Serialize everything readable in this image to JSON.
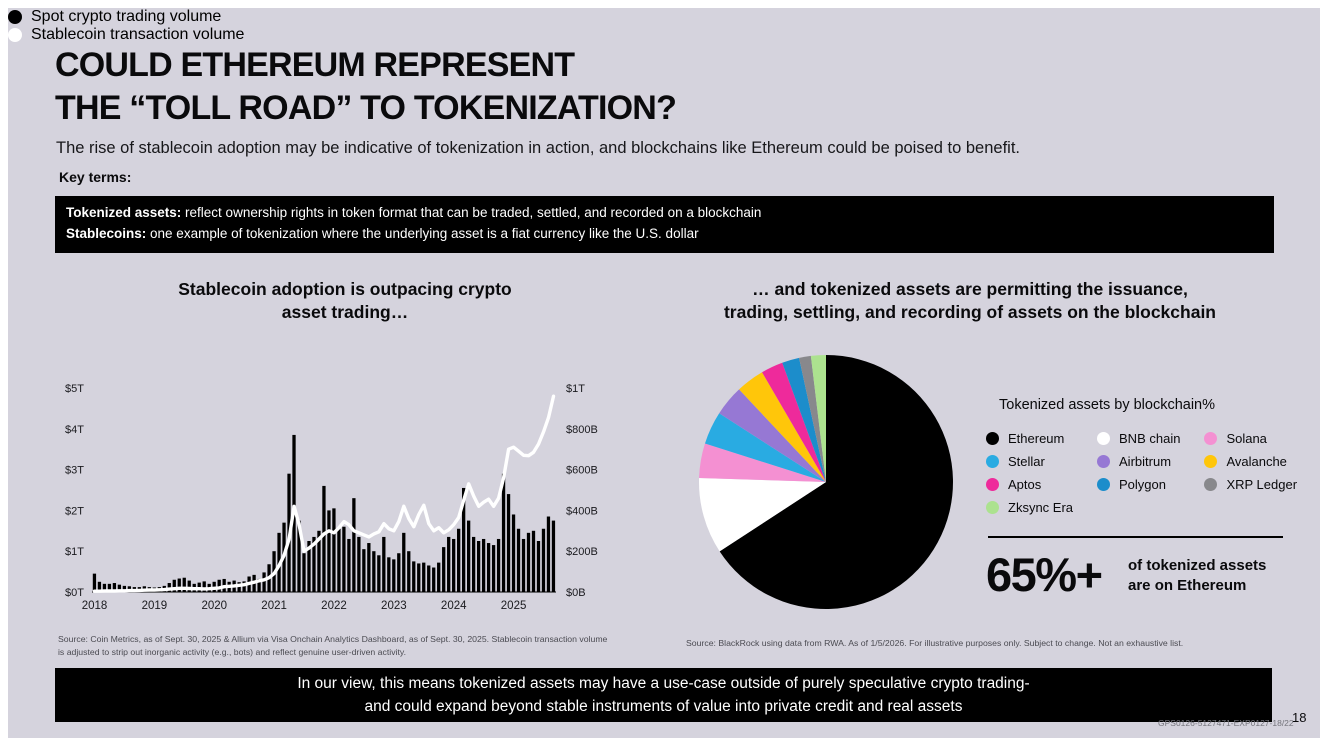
{
  "slide": {
    "title_line1": "COULD ETHEREUM REPRESENT",
    "title_line2": "THE “TOLL ROAD” TO TOKENIZATION?",
    "subtitle": "The rise of stablecoin adoption may be indicative of tokenization in action, and blockchains like Ethereum could be poised to benefit.",
    "key_terms_label": "Key terms:",
    "key_terms": [
      {
        "term": "Tokenized assets:",
        "definition": " reflect ownership rights in token format that can be traded, settled, and recorded on a blockchain"
      },
      {
        "term": "Stablecoins:",
        "definition": " one example of tokenization where the underlying asset is a fiat currency like the U.S. dollar"
      }
    ],
    "takeaway_line1": "In our view, this means tokenized assets may have a use-case outside of purely speculative crypto trading-",
    "takeaway_line2": "and could expand beyond stable instruments of value into private credit and real assets",
    "compliance_code": "GPS0126-5127471-EXP0127-18/22",
    "page_number": "18"
  },
  "left_panel": {
    "title_line1": "Stablecoin adoption is outpacing crypto",
    "title_line2": "asset trading…",
    "legend": [
      {
        "label": "Spot crypto trading volume",
        "color": "#000000",
        "border": "none"
      },
      {
        "label": "Stablecoin transaction volume",
        "color": "#ffffff",
        "border": "none"
      }
    ],
    "source_line1": "Source: Coin Metrics, as of Sept. 30, 2025 & Allium via Visa Onchain Analytics Dashboard, as of Sept. 30, 2025. Stablecoin transaction volume",
    "source_line2": "is adjusted to strip out inorganic activity (e.g., bots) and reflect genuine user-driven activity."
  },
  "right_panel": {
    "title_line1": "… and  tokenized assets are permitting the issuance,",
    "title_line2": "trading, settling, and recording of assets on the blockchain",
    "legend_title": "Tokenized assets by blockchain%",
    "legend_columns": [
      [
        {
          "label": "Ethereum",
          "color": "#000000"
        },
        {
          "label": "Stellar",
          "color": "#29abe2"
        },
        {
          "label": "Aptos",
          "color": "#ee2a9b"
        },
        {
          "label": "Zksync Era",
          "color": "#ace28f"
        }
      ],
      [
        {
          "label": "BNB chain",
          "color": "#ffffff"
        },
        {
          "label": "Airbitrum",
          "color": "#9678d4"
        },
        {
          "label": "Polygon",
          "color": "#1c8dcb"
        }
      ],
      [
        {
          "label": "Solana",
          "color": "#f490d2"
        },
        {
          "label": "Avalanche",
          "color": "#ffc60a"
        },
        {
          "label": "XRP Ledger",
          "color": "#88888c"
        }
      ]
    ],
    "stat_value": "65%+",
    "stat_label_line1": "of tokenized assets",
    "stat_label_line2": "are on Ethereum",
    "source": "Source: BlackRock using data from RWA. As of 1/5/2026. For illustrative purposes only. Subject to change. Not an exhaustive list."
  },
  "chart_data": [
    {
      "type": "bar",
      "subtype": "bar+line dual-axis combo, monthly Jan 2018 - Sep 2025",
      "title": "Stablecoin adoption is outpacing crypto asset trading…",
      "x_tick_labels": [
        "2018",
        "2019",
        "2020",
        "2021",
        "2022",
        "2023",
        "2024",
        "2025"
      ],
      "left_axis": {
        "ticks": [
          "$0T",
          "$1T",
          "$2T",
          "$3T",
          "$4T",
          "$5T"
        ],
        "range": [
          0,
          5
        ],
        "unit": "USD trillions"
      },
      "right_axis": {
        "ticks": [
          "$0B",
          "$200B",
          "$400B",
          "$600B",
          "$800B",
          "$1T"
        ],
        "range": [
          0,
          1000
        ],
        "unit": "USD billions"
      },
      "grid": false,
      "legend_position": "top-left",
      "series": [
        {
          "name": "Spot crypto trading volume",
          "type": "bar",
          "axis": "left",
          "color": "#000000",
          "values": [
            0.45,
            0.25,
            0.2,
            0.2,
            0.22,
            0.18,
            0.15,
            0.14,
            0.12,
            0.12,
            0.14,
            0.12,
            0.11,
            0.12,
            0.15,
            0.22,
            0.3,
            0.33,
            0.35,
            0.28,
            0.2,
            0.23,
            0.26,
            0.2,
            0.25,
            0.3,
            0.32,
            0.25,
            0.28,
            0.24,
            0.26,
            0.38,
            0.42,
            0.32,
            0.48,
            0.68,
            1.0,
            1.45,
            1.7,
            2.9,
            3.85,
            1.75,
            0.95,
            1.25,
            1.35,
            1.5,
            2.6,
            2.0,
            2.05,
            1.55,
            1.6,
            1.3,
            2.3,
            1.35,
            1.05,
            1.2,
            1.0,
            0.9,
            1.35,
            0.85,
            0.8,
            0.95,
            1.45,
            1.0,
            0.75,
            0.7,
            0.72,
            0.65,
            0.6,
            0.72,
            1.1,
            1.35,
            1.3,
            1.55,
            2.55,
            1.75,
            1.35,
            1.25,
            1.3,
            1.2,
            1.15,
            1.3,
            2.9,
            2.4,
            1.9,
            1.55,
            1.3,
            1.45,
            1.5,
            1.25,
            1.55,
            1.85,
            1.75
          ]
        },
        {
          "name": "Stablecoin transaction volume",
          "type": "line",
          "axis": "right",
          "color": "#ffffff",
          "values": [
            4,
            4,
            5,
            5,
            5,
            6,
            6,
            7,
            7,
            8,
            9,
            10,
            10,
            11,
            12,
            14,
            16,
            18,
            18,
            17,
            16,
            16,
            15,
            16,
            18,
            20,
            26,
            28,
            30,
            33,
            36,
            42,
            48,
            55,
            60,
            70,
            90,
            130,
            180,
            260,
            420,
            330,
            200,
            215,
            235,
            260,
            285,
            300,
            290,
            315,
            345,
            330,
            300,
            290,
            280,
            270,
            285,
            295,
            335,
            310,
            300,
            345,
            420,
            360,
            320,
            380,
            425,
            335,
            300,
            315,
            290,
            305,
            330,
            365,
            450,
            530,
            470,
            420,
            440,
            455,
            420,
            460,
            560,
            700,
            710,
            690,
            670,
            668,
            685,
            725,
            785,
            855,
            960
          ]
        }
      ]
    },
    {
      "type": "pie",
      "title": "Tokenized assets by blockchain%",
      "start_angle_deg_from_12oclock": 0,
      "direction": "clockwise",
      "slices": [
        {
          "label": "Ethereum",
          "value": 65.8,
          "color": "#000000"
        },
        {
          "label": "BNB chain",
          "value": 9.7,
          "color": "#ffffff"
        },
        {
          "label": "Solana",
          "value": 4.4,
          "color": "#f490d2"
        },
        {
          "label": "Stellar",
          "value": 4.2,
          "color": "#29abe2"
        },
        {
          "label": "Airbitrum",
          "value": 3.9,
          "color": "#9678d4"
        },
        {
          "label": "Avalanche",
          "value": 3.6,
          "color": "#ffc60a"
        },
        {
          "label": "Aptos",
          "value": 2.8,
          "color": "#ee2a9b"
        },
        {
          "label": "Polygon",
          "value": 2.2,
          "color": "#1c8dcb"
        },
        {
          "label": "XRP Ledger",
          "value": 1.5,
          "color": "#88888c"
        },
        {
          "label": "Zksync Era",
          "value": 1.9,
          "color": "#ace28f"
        }
      ],
      "annotation": "65%+ of tokenized assets are on Ethereum"
    }
  ]
}
